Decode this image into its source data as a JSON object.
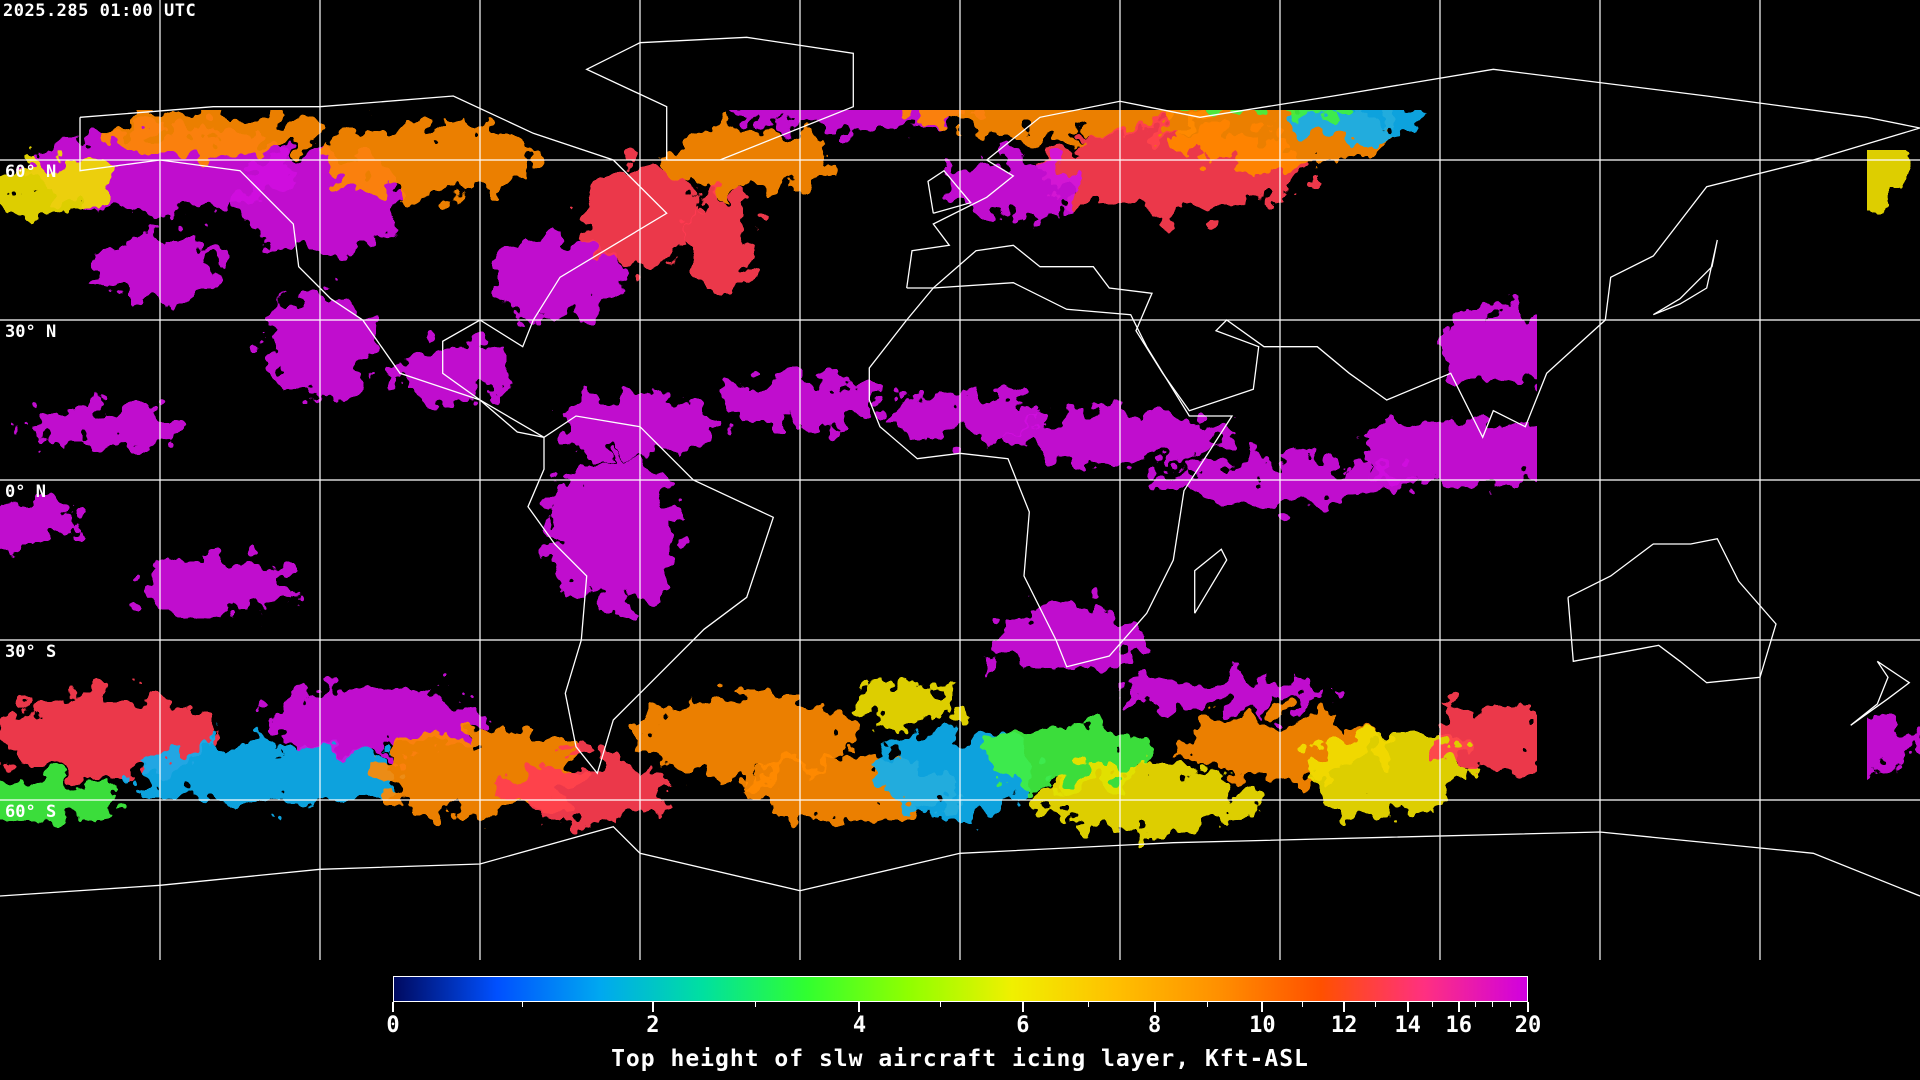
{
  "timestamp": "2025.285 01:00 UTC",
  "lat_labels": [
    "60° N",
    "30° N",
    "0° N",
    "30° S",
    "60° S"
  ],
  "colorbar": {
    "title": "Top height of slw aircraft icing layer, Kft-ASL",
    "min": 0,
    "max": 20,
    "scale": "nonlinear",
    "major_ticks": [
      "0",
      "2",
      "4",
      "6",
      "8",
      "10",
      "12",
      "14",
      "16",
      "20"
    ],
    "minor_ticks": [
      1,
      3,
      5,
      7,
      9,
      11,
      13,
      15,
      17,
      18,
      19
    ],
    "colors": [
      "#000a60",
      "#0050ff",
      "#00a8f0",
      "#00e0a0",
      "#30ff30",
      "#90ff00",
      "#f0f000",
      "#ffc000",
      "#ff9000",
      "#ff5000",
      "#ff3080",
      "#d000e0"
    ]
  },
  "map": {
    "projection": "equirectangular",
    "grid_spacing_deg": 30,
    "background": "#000000",
    "coastline_color": "#ffffff",
    "no_data_color": "#000000"
  }
}
